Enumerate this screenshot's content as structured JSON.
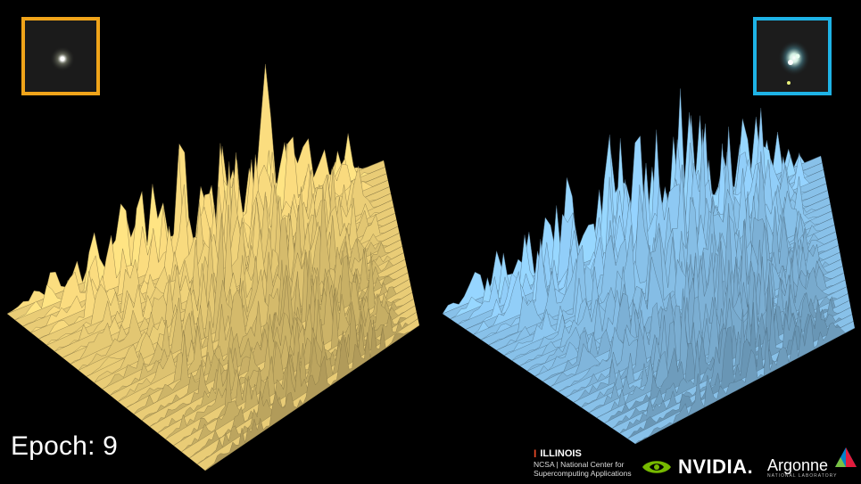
{
  "epoch_label": "Epoch: 9",
  "thumbnails": {
    "left_border_color": "#f0a41a",
    "right_border_color": "#1eb3e6"
  },
  "surfaces": {
    "left_color": "#f5d77c",
    "right_color": "#8fcbf5"
  },
  "logos": {
    "illinois_title": "ILLINOIS",
    "illinois_line1": "NCSA | National Center for",
    "illinois_line2": "Supercomputing Applications",
    "nvidia_text": "NVIDIA.",
    "argonne_text": "Argonne",
    "argonne_sub": "NATIONAL LABORATORY"
  }
}
